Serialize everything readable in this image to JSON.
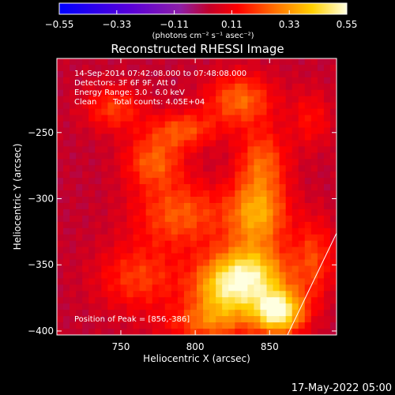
{
  "chart_data": {
    "type": "heatmap",
    "title": "Reconstructed RHESSI Image",
    "xlabel": "Heliocentric X (arcsec)",
    "ylabel": "Heliocentric Y (arcsec)",
    "xlim": [
      707,
      895
    ],
    "ylim": [
      -403,
      -194
    ],
    "x_ticks": [
      {
        "value": 750,
        "label": "750"
      },
      {
        "value": 800,
        "label": "800"
      },
      {
        "value": 850,
        "label": "850"
      }
    ],
    "y_ticks": [
      {
        "value": -250,
        "label": "−250"
      },
      {
        "value": -300,
        "label": "−300"
      },
      {
        "value": -350,
        "label": "−350"
      },
      {
        "value": -400,
        "label": "−400"
      }
    ],
    "colorbar": {
      "range": [
        -0.55,
        0.55
      ],
      "ticks": [
        {
          "value": -0.55,
          "label": "−0.55"
        },
        {
          "value": -0.33,
          "label": "−0.33"
        },
        {
          "value": -0.11,
          "label": "−0.11"
        },
        {
          "value": 0.11,
          "label": "0.11"
        },
        {
          "value": 0.33,
          "label": "0.33"
        },
        {
          "value": 0.55,
          "label": "0.55"
        }
      ],
      "unit_label": "(photons cm⁻² s⁻¹ asec⁻²)"
    },
    "annotations": {
      "time_range": "14-Sep-2014 07:42:08.000 to 07:48:08.000",
      "detectors": "Detectors: 3F 6F 9F, Att 0",
      "energy_range": "Energy Range: 3.0 - 6.0 keV",
      "method": "Clean",
      "total_counts": "Total counts: 4.05E+04",
      "peak": "Position of Peak = [856,-386]"
    },
    "peak_position": [
      856,
      -386
    ],
    "sources": [
      {
        "x": 856,
        "y": -386,
        "amp": 0.5,
        "sx": 12,
        "sy": 12
      },
      {
        "x": 838,
        "y": -358,
        "amp": 0.4,
        "sx": 18,
        "sy": 16
      },
      {
        "x": 842,
        "y": -312,
        "amp": 0.32,
        "sx": 14,
        "sy": 18
      },
      {
        "x": 845,
        "y": -272,
        "amp": 0.22,
        "sx": 12,
        "sy": 18
      },
      {
        "x": 818,
        "y": -372,
        "amp": 0.3,
        "sx": 16,
        "sy": 18
      },
      {
        "x": 830,
        "y": -225,
        "amp": 0.24,
        "sx": 16,
        "sy": 14
      },
      {
        "x": 792,
        "y": -248,
        "amp": 0.2,
        "sx": 16,
        "sy": 10
      },
      {
        "x": 772,
        "y": -272,
        "amp": 0.22,
        "sx": 14,
        "sy": 14
      },
      {
        "x": 790,
        "y": -312,
        "amp": 0.22,
        "sx": 22,
        "sy": 18
      },
      {
        "x": 762,
        "y": -360,
        "amp": 0.18,
        "sx": 20,
        "sy": 18
      },
      {
        "x": 745,
        "y": -232,
        "amp": 0.18,
        "sx": 14,
        "sy": 12
      },
      {
        "x": 805,
        "y": -395,
        "amp": 0.16,
        "sx": 20,
        "sy": 10
      },
      {
        "x": 880,
        "y": -345,
        "amp": 0.18,
        "sx": 10,
        "sy": 22
      },
      {
        "x": 878,
        "y": -240,
        "amp": 0.12,
        "sx": 10,
        "sy": 16
      }
    ],
    "background_level": 0.02,
    "limb_line": [
      [
        862,
        -403
      ],
      [
        895,
        -326
      ]
    ]
  },
  "footer": {
    "timestamp": "17-May-2022 05:00"
  }
}
